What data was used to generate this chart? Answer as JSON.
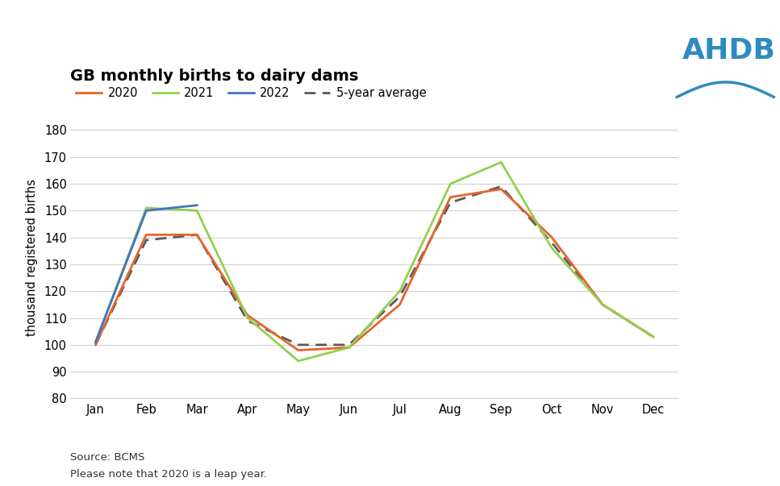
{
  "title": "GB monthly births to dairy dams",
  "ylabel": "thousand registered births",
  "months": [
    "Jan",
    "Feb",
    "Mar",
    "Apr",
    "May",
    "Jun",
    "Jul",
    "Aug",
    "Sep",
    "Oct",
    "Nov",
    "Dec"
  ],
  "series_2020": [
    100,
    141,
    141,
    111,
    98,
    99,
    115,
    155,
    158,
    140,
    115,
    103
  ],
  "series_2021": [
    101,
    151,
    150,
    110,
    94,
    99,
    120,
    160,
    168,
    136,
    115,
    103
  ],
  "series_2022": [
    101,
    150,
    152,
    null,
    null,
    null,
    null,
    null,
    null,
    null,
    null,
    null
  ],
  "series_5yr_avg": [
    100,
    139,
    141,
    109,
    100,
    100,
    118,
    153,
    159,
    138,
    115,
    103
  ],
  "color_2020": "#E8622A",
  "color_2021": "#92D050",
  "color_2022": "#4472C4",
  "color_5yr": "#595959",
  "ylim_min": 80,
  "ylim_max": 185,
  "yticks": [
    80,
    90,
    100,
    110,
    120,
    130,
    140,
    150,
    160,
    170,
    180
  ],
  "source_text": "Source: BCMS",
  "note_text": "Please note that 2020 is a leap year.",
  "background_color": "#FFFFFF",
  "plot_bg_color": "#FFFFFF",
  "grid_color": "#D0D0D0",
  "ahdb_color": "#2E8BC0"
}
